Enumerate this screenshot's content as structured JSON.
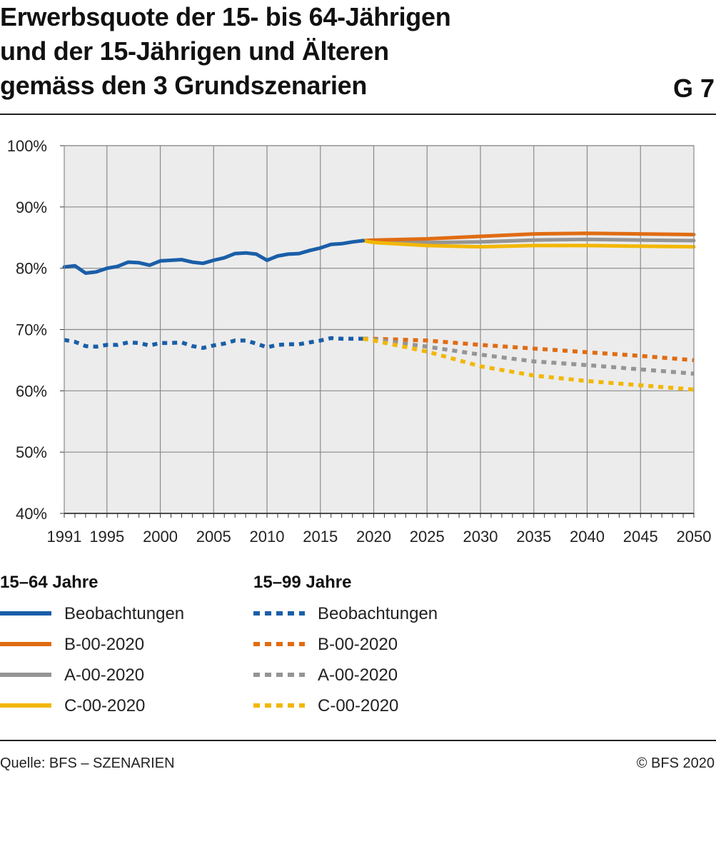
{
  "header": {
    "title_lines": [
      "Erwerbsquote der 15- bis 64-Jährigen",
      "und der 15-Jährigen und Älteren",
      "gemäss den 3 Grundszenarien"
    ],
    "code": "G 7"
  },
  "legend": {
    "group1_title": "15–64 Jahre",
    "group2_title": "15–99 Jahre",
    "group1_items": [
      "Beobachtungen",
      "B-00-2020",
      "A-00-2020",
      "C-00-2020"
    ],
    "group2_items": [
      "Beobachtungen",
      "B-00-2020",
      "A-00-2020",
      "C-00-2020"
    ]
  },
  "footer": {
    "source": "Quelle: BFS – SZENARIEN",
    "copyright": "© BFS 2020"
  },
  "colors": {
    "observed": "#1a5ea8",
    "B": "#e06c12",
    "A": "#959595",
    "C": "#f2b705",
    "plot_bg": "#ececec",
    "grid": "#8a8a8a"
  },
  "chart_data": {
    "type": "line",
    "xlim": [
      1991,
      2050
    ],
    "ylim": [
      40,
      100
    ],
    "xticks": [
      "1991",
      "1995",
      "2000",
      "2005",
      "2010",
      "2015",
      "2020",
      "2025",
      "2030",
      "2035",
      "2040",
      "2045",
      "2050"
    ],
    "yticks": [
      "40%",
      "50%",
      "60%",
      "70%",
      "80%",
      "90%",
      "100%"
    ],
    "grid": true,
    "series": [
      {
        "name": "Beobachtungen",
        "group": "15–64 Jahre",
        "color": "observed",
        "dashed": false,
        "x": [
          1991,
          1992,
          1993,
          1994,
          1995,
          1996,
          1997,
          1998,
          1999,
          2000,
          2001,
          2002,
          2003,
          2004,
          2005,
          2006,
          2007,
          2008,
          2009,
          2010,
          2011,
          2012,
          2013,
          2014,
          2015,
          2016,
          2017,
          2018,
          2019
        ],
        "y": [
          80.2,
          80.4,
          79.2,
          79.4,
          80.0,
          80.3,
          81.0,
          80.9,
          80.5,
          81.2,
          81.3,
          81.4,
          81.0,
          80.8,
          81.3,
          81.7,
          82.4,
          82.5,
          82.3,
          81.3,
          82.0,
          82.3,
          82.4,
          82.9,
          83.3,
          83.9,
          84.0,
          84.3,
          84.5
        ]
      },
      {
        "name": "A-00-2020",
        "group": "15–64 Jahre",
        "color": "A",
        "dashed": false,
        "x": [
          2019,
          2020,
          2025,
          2030,
          2035,
          2040,
          2045,
          2050
        ],
        "y": [
          84.5,
          84.4,
          84.2,
          84.3,
          84.6,
          84.7,
          84.6,
          84.5
        ]
      },
      {
        "name": "B-00-2020",
        "group": "15–64 Jahre",
        "color": "B",
        "dashed": false,
        "x": [
          2019,
          2020,
          2025,
          2030,
          2035,
          2040,
          2045,
          2050
        ],
        "y": [
          84.5,
          84.6,
          84.8,
          85.2,
          85.6,
          85.7,
          85.6,
          85.5
        ]
      },
      {
        "name": "C-00-2020",
        "group": "15–64 Jahre",
        "color": "C",
        "dashed": false,
        "x": [
          2019,
          2020,
          2025,
          2030,
          2035,
          2040,
          2045,
          2050
        ],
        "y": [
          84.5,
          84.2,
          83.7,
          83.5,
          83.7,
          83.7,
          83.6,
          83.5
        ]
      },
      {
        "name": "Beobachtungen",
        "group": "15–99 Jahre",
        "color": "observed",
        "dashed": true,
        "x": [
          1991,
          1992,
          1993,
          1994,
          1995,
          1996,
          1997,
          1998,
          1999,
          2000,
          2001,
          2002,
          2003,
          2004,
          2005,
          2006,
          2007,
          2008,
          2009,
          2010,
          2011,
          2012,
          2013,
          2014,
          2015,
          2016,
          2017,
          2018,
          2019
        ],
        "y": [
          68.3,
          68.0,
          67.3,
          67.2,
          67.5,
          67.5,
          67.9,
          67.8,
          67.4,
          67.8,
          67.8,
          67.9,
          67.3,
          67.0,
          67.4,
          67.7,
          68.2,
          68.2,
          67.7,
          67.1,
          67.5,
          67.6,
          67.6,
          67.9,
          68.2,
          68.6,
          68.5,
          68.5,
          68.5
        ]
      },
      {
        "name": "B-00-2020",
        "group": "15–99 Jahre",
        "color": "B",
        "dashed": true,
        "x": [
          2019,
          2020,
          2025,
          2030,
          2035,
          2040,
          2045,
          2050
        ],
        "y": [
          68.5,
          68.5,
          68.2,
          67.5,
          66.9,
          66.3,
          65.7,
          65.0
        ]
      },
      {
        "name": "A-00-2020",
        "group": "15–99 Jahre",
        "color": "A",
        "dashed": true,
        "x": [
          2019,
          2020,
          2025,
          2030,
          2035,
          2040,
          2045,
          2050
        ],
        "y": [
          68.5,
          68.4,
          67.2,
          65.9,
          64.8,
          64.2,
          63.5,
          62.8
        ]
      },
      {
        "name": "C-00-2020",
        "group": "15–99 Jahre",
        "color": "C",
        "dashed": true,
        "x": [
          2019,
          2020,
          2025,
          2030,
          2035,
          2040,
          2045,
          2050
        ],
        "y": [
          68.5,
          68.2,
          66.4,
          64.0,
          62.5,
          61.6,
          60.9,
          60.2
        ]
      }
    ]
  }
}
